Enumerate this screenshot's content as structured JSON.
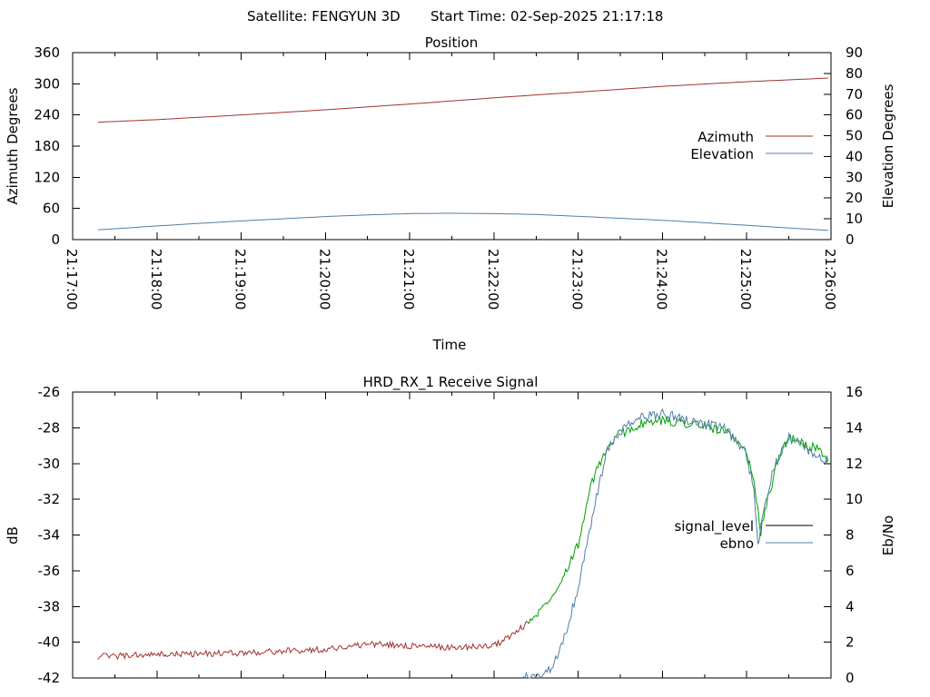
{
  "header": {
    "satellite_label": "Satellite: FENGYUN 3D",
    "start_time_label": "Start Time: 02-Sep-2025 21:17:18"
  },
  "chart_data": [
    {
      "type": "line",
      "title": "Position",
      "xlabel": "Time",
      "ylabel": "Azimuth Degrees",
      "y2label": "Elevation Degrees",
      "x_ticks": [
        "21:17:00",
        "21:18:00",
        "21:19:00",
        "21:20:00",
        "21:21:00",
        "21:22:00",
        "21:23:00",
        "21:24:00",
        "21:25:00",
        "21:26:00"
      ],
      "xlim": [
        "21:17:00",
        "21:26:00"
      ],
      "ylim": [
        0,
        360
      ],
      "y_ticks": [
        0,
        60,
        120,
        180,
        240,
        300,
        360
      ],
      "y2lim": [
        0,
        90
      ],
      "y2_ticks": [
        0,
        10,
        20,
        30,
        40,
        50,
        60,
        70,
        80,
        90
      ],
      "legend_position": "right",
      "series": [
        {
          "name": "Azimuth",
          "axis": "y",
          "color": "#a03232",
          "x": [
            "21:17:18",
            "21:18:00",
            "21:19:00",
            "21:20:00",
            "21:21:00",
            "21:22:00",
            "21:23:00",
            "21:24:00",
            "21:25:00",
            "21:25:58"
          ],
          "y": [
            226,
            231,
            240,
            250,
            261,
            273,
            284,
            295,
            304,
            311
          ]
        },
        {
          "name": "Elevation",
          "axis": "y2",
          "color": "#4f7fa8",
          "x": [
            "21:17:18",
            "21:18:00",
            "21:19:00",
            "21:20:00",
            "21:20:30",
            "21:21:00",
            "21:21:30",
            "21:22:00",
            "21:22:30",
            "21:23:00",
            "21:24:00",
            "21:25:00",
            "21:25:58"
          ],
          "y": [
            4.7,
            6.6,
            9.0,
            11.1,
            11.9,
            12.5,
            12.7,
            12.5,
            12.1,
            11.2,
            9.3,
            6.9,
            4.4
          ]
        }
      ]
    },
    {
      "type": "line",
      "title": "HRD_RX_1 Receive Signal",
      "ylabel": "dB",
      "y2label": "Eb/No",
      "xlim": [
        "21:17:00",
        "21:26:00"
      ],
      "ylim": [
        -42,
        -26
      ],
      "y_ticks": [
        -42,
        -40,
        -38,
        -36,
        -34,
        -32,
        -30,
        -28,
        -26
      ],
      "y2lim": [
        0,
        16
      ],
      "y2_ticks": [
        0,
        2,
        4,
        6,
        8,
        10,
        12,
        14,
        16
      ],
      "legend_position": "right",
      "series": [
        {
          "name": "signal_level",
          "axis": "y",
          "color": "#000000",
          "display_colors": [
            "#a03232",
            "#00a000"
          ],
          "x": [
            "21:17:18",
            "21:18:00",
            "21:19:00",
            "21:20:00",
            "21:20:30",
            "21:21:00",
            "21:21:30",
            "21:22:00",
            "21:22:15",
            "21:22:30",
            "21:22:45",
            "21:23:00",
            "21:23:10",
            "21:23:20",
            "21:23:30",
            "21:23:45",
            "21:24:00",
            "21:24:15",
            "21:24:30",
            "21:24:45",
            "21:25:00",
            "21:25:05",
            "21:25:10",
            "21:25:15",
            "21:25:20",
            "21:25:25",
            "21:25:30",
            "21:25:40",
            "21:25:50",
            "21:25:58"
          ],
          "y": [
            -40.8,
            -40.7,
            -40.6,
            -40.4,
            -40.1,
            -40.2,
            -40.3,
            -40.2,
            -39.5,
            -38.5,
            -37.0,
            -34.5,
            -31.0,
            -29.2,
            -28.3,
            -27.8,
            -27.6,
            -27.7,
            -27.9,
            -28.2,
            -29.5,
            -31.0,
            -33.8,
            -32.0,
            -30.5,
            -29.0,
            -28.6,
            -28.9,
            -29.2,
            -30.0
          ]
        },
        {
          "name": "ebno",
          "axis": "y2",
          "color": "#4f7fa8",
          "x": [
            "21:22:20",
            "21:22:30",
            "21:22:40",
            "21:22:50",
            "21:23:00",
            "21:23:10",
            "21:23:20",
            "21:23:30",
            "21:23:45",
            "21:24:00",
            "21:24:15",
            "21:24:30",
            "21:24:45",
            "21:25:00",
            "21:25:05",
            "21:25:08",
            "21:25:12",
            "21:25:20",
            "21:25:30",
            "21:25:40",
            "21:25:50",
            "21:25:58"
          ],
          "y": [
            0.1,
            0.0,
            0.5,
            2.2,
            5.0,
            9.0,
            12.6,
            13.8,
            14.6,
            14.8,
            14.5,
            14.2,
            13.9,
            12.5,
            10.5,
            7.4,
            9.5,
            12.0,
            13.5,
            13.0,
            12.4,
            12.2
          ]
        }
      ]
    }
  ]
}
